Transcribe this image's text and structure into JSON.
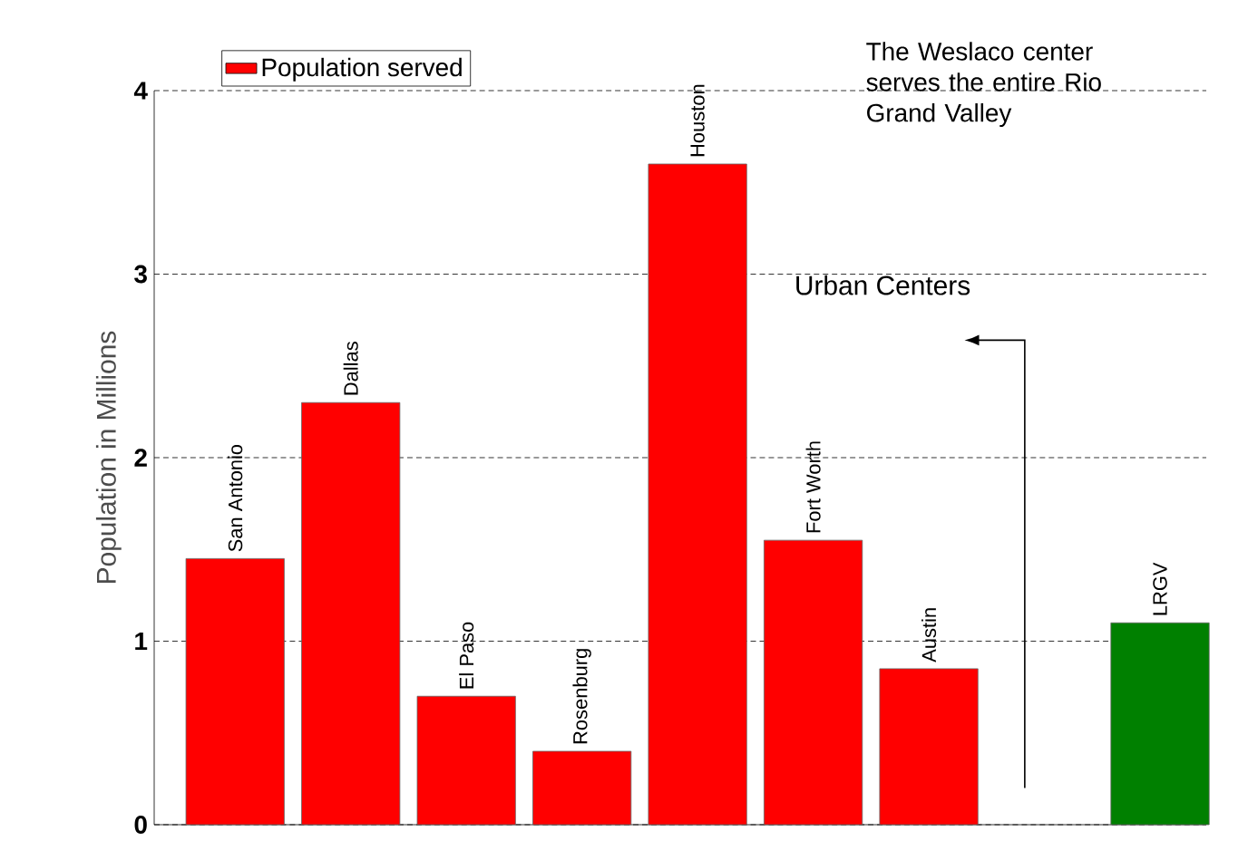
{
  "chart_data": {
    "type": "bar",
    "ylabel": "Population in Millions",
    "categories": [
      "San Antonio",
      "Dallas",
      "El Paso",
      "Rosenburg",
      "Houston",
      "Fort Worth",
      "Austin",
      null,
      "LRGV"
    ],
    "series": [
      {
        "name": "Population served",
        "color": "#ff0000",
        "values": [
          1.45,
          2.3,
          0.7,
          0.4,
          3.6,
          1.55,
          0.85,
          null,
          1.1
        ],
        "colors": [
          "#ff0000",
          "#ff0000",
          "#ff0000",
          "#ff0000",
          "#ff0000",
          "#ff0000",
          "#ff0000",
          "#ff0000",
          "#008000"
        ]
      }
    ],
    "ylim": [
      0,
      4
    ],
    "yticks": [
      0,
      1,
      2,
      3,
      4
    ],
    "grid": "y",
    "legend": "top left",
    "annotations": [
      "The Weslaco center serves the entire Rio Grand Valley",
      "Urban Centers"
    ]
  }
}
